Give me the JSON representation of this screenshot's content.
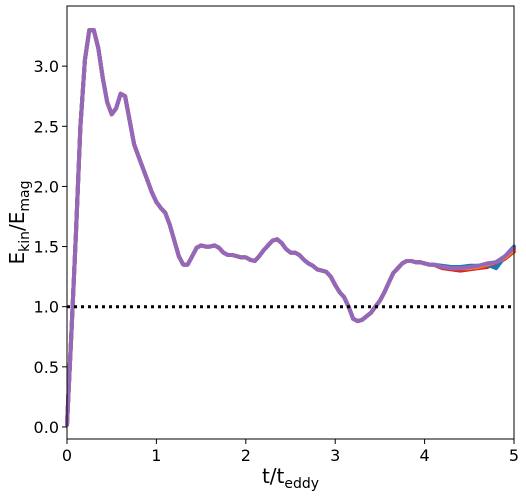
{
  "chart_data": {
    "type": "line",
    "xlabel": {
      "base": "t/t",
      "sub": "eddy"
    },
    "ylabel": {
      "base": "E",
      "sub1": "kin",
      "mid": "/E",
      "sub2": "mag"
    },
    "xlim": [
      0,
      5
    ],
    "ylim": [
      -0.1,
      3.5
    ],
    "xticks": [
      0,
      1,
      2,
      3,
      4,
      5
    ],
    "xtick_labels": [
      "0",
      "1",
      "2",
      "3",
      "4",
      "5"
    ],
    "yticks": [
      0.0,
      0.5,
      1.0,
      1.5,
      2.0,
      2.5,
      3.0
    ],
    "ytick_labels": [
      "0.0",
      "0.5",
      "1.0",
      "1.5",
      "2.0",
      "2.5",
      "3.0"
    ],
    "grid": false,
    "legend": "none",
    "reference_line": {
      "y": 1.0,
      "style": "dotted",
      "color": "#000000"
    },
    "shared_x": [
      0.0,
      0.05,
      0.1,
      0.15,
      0.2,
      0.25,
      0.3,
      0.35,
      0.4,
      0.45,
      0.5,
      0.55,
      0.6,
      0.65,
      0.7,
      0.75,
      0.8,
      0.85,
      0.9,
      0.95,
      1.0,
      1.05,
      1.1,
      1.15,
      1.2,
      1.25,
      1.3,
      1.35,
      1.4,
      1.45,
      1.5,
      1.55,
      1.6,
      1.65,
      1.7,
      1.75,
      1.8,
      1.85,
      1.9,
      1.95,
      2.0,
      2.05,
      2.1,
      2.15,
      2.2,
      2.25,
      2.3,
      2.35,
      2.4,
      2.45,
      2.5,
      2.55,
      2.6,
      2.65,
      2.7,
      2.75,
      2.8,
      2.85,
      2.9,
      2.95,
      3.0,
      3.05,
      3.1,
      3.15,
      3.2,
      3.25,
      3.3,
      3.35,
      3.4,
      3.45,
      3.5,
      3.55,
      3.6,
      3.65,
      3.7,
      3.75,
      3.8,
      3.85,
      3.9,
      3.95,
      4.0,
      4.05,
      4.1
    ],
    "shared_y": [
      0.02,
      0.8,
      1.6,
      2.5,
      3.05,
      3.3,
      3.3,
      3.15,
      2.9,
      2.7,
      2.6,
      2.65,
      2.77,
      2.75,
      2.55,
      2.35,
      2.25,
      2.15,
      2.05,
      1.95,
      1.87,
      1.82,
      1.78,
      1.68,
      1.55,
      1.42,
      1.35,
      1.35,
      1.42,
      1.49,
      1.51,
      1.5,
      1.5,
      1.51,
      1.49,
      1.45,
      1.43,
      1.43,
      1.42,
      1.41,
      1.41,
      1.39,
      1.38,
      1.42,
      1.47,
      1.51,
      1.55,
      1.56,
      1.53,
      1.48,
      1.45,
      1.45,
      1.43,
      1.39,
      1.36,
      1.34,
      1.31,
      1.3,
      1.29,
      1.25,
      1.18,
      1.12,
      1.08,
      1.0,
      0.9,
      0.88,
      0.89,
      0.92,
      0.95,
      1.0,
      1.05,
      1.12,
      1.2,
      1.28,
      1.32,
      1.36,
      1.38,
      1.38,
      1.37,
      1.37,
      1.36,
      1.35,
      1.35
    ],
    "series": [
      {
        "color": "#2ca02c",
        "x": [
          4.1,
          4.2,
          4.3,
          4.4,
          4.5,
          4.6,
          4.7,
          4.8,
          4.9,
          5.0
        ],
        "values": [
          1.35,
          1.33,
          1.32,
          1.32,
          1.33,
          1.34,
          1.35,
          1.37,
          1.42,
          1.48
        ]
      },
      {
        "color": "#d62728",
        "x": [
          4.1,
          4.2,
          4.3,
          4.4,
          4.5,
          4.6,
          4.7,
          4.8,
          4.9,
          5.0
        ],
        "values": [
          1.35,
          1.32,
          1.31,
          1.3,
          1.31,
          1.32,
          1.33,
          1.36,
          1.4,
          1.46
        ]
      },
      {
        "color": "#1f77b4",
        "x": [
          4.1,
          4.2,
          4.3,
          4.4,
          4.5,
          4.6,
          4.7,
          4.8,
          4.9,
          5.0
        ],
        "values": [
          1.35,
          1.34,
          1.33,
          1.33,
          1.34,
          1.34,
          1.35,
          1.32,
          1.42,
          1.5
        ]
      },
      {
        "color": "#ff7f0e",
        "x": [
          4.1,
          4.2,
          4.3,
          4.4,
          4.5,
          4.6,
          4.7,
          4.8,
          4.9,
          5.0
        ],
        "values": [
          1.35,
          1.33,
          1.32,
          1.32,
          1.32,
          1.33,
          1.35,
          1.37,
          1.41,
          1.47
        ]
      },
      {
        "color": "#9467bd",
        "x": [
          4.1,
          4.2,
          4.3,
          4.4,
          4.5,
          4.6,
          4.7,
          4.8,
          4.9,
          5.0
        ],
        "values": [
          1.35,
          1.33,
          1.32,
          1.32,
          1.33,
          1.34,
          1.36,
          1.37,
          1.42,
          1.49
        ]
      }
    ]
  }
}
